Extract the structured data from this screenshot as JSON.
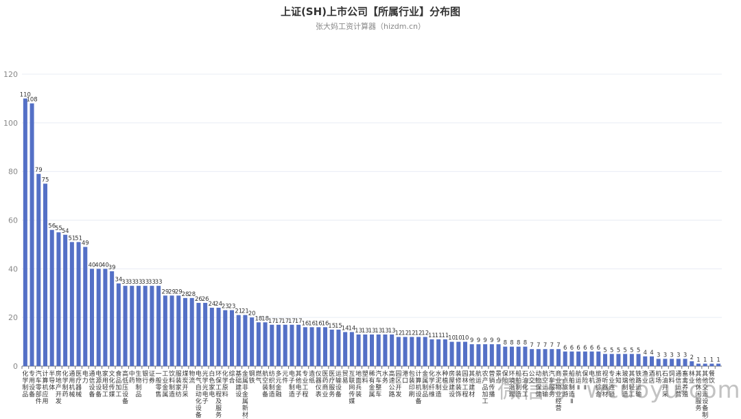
{
  "header": {
    "title": "上证(SH)上市公司【所属行业】分布图",
    "subtitle": "张大妈工资计算器（hizdm.cn）"
  },
  "watermark": "微信号: wcuoyu-com",
  "chart_data": {
    "type": "bar",
    "title": "上证(SH)上市公司【所属行业】分布图",
    "subtitle": "张大妈工资计算器（hizdm.cn）",
    "xlabel": "",
    "ylabel": "",
    "ylim": [
      0,
      120
    ],
    "yticks": [
      0,
      20,
      40,
      60,
      80,
      100,
      120
    ],
    "grid": true,
    "legend": null,
    "bar_color": "#5470c6",
    "categories": [
      "化学制品",
      "专用设备",
      "汽车零部件",
      "计算机应用",
      "半导体",
      "房地产开发",
      "化学制药",
      "通用机械",
      "医疗器械",
      "电力",
      "通信设备",
      "电源设备",
      "家用轻工",
      "文化传媒",
      "食品加工",
      "高低压设备",
      "中药",
      "生物制品",
      "银行",
      "证券",
      "一般零售",
      "工业金属",
      "饮料制造",
      "服装家纺",
      "煤炭开采",
      "物流",
      "电气自动化设备",
      "光学光电子",
      "白色家电",
      "环保工程及服务",
      "化学原料",
      "综合",
      "基础建设",
      "金属非金属新材料",
      "钢铁",
      "燃气",
      "航空装备",
      "纺织制造",
      "多元金融",
      "元件",
      "电子制造",
      "其他电子",
      "专业工程",
      "造纸",
      "仪器仪表",
      "医药商业",
      "医疗服务",
      "运输设备",
      "贸易",
      "互联网传媒",
      "地面兵装",
      "塑料",
      "稀有金属",
      "汽车整车",
      "水务",
      "高速公路",
      "园区开发",
      "港口",
      "包装印刷",
      "计算机设备",
      "金属制品",
      "化学纤维",
      "水泥制造",
      "种植业",
      "房屋建设",
      "装修装饰",
      "园林工程",
      "其他建材",
      "航运",
      "农产品加工",
      "营销传播",
      "景点",
      "保险",
      "环境治理",
      "船舶制造",
      "石油化工",
      "公交",
      "动物保健",
      "航空运输",
      "汽车服务",
      "商业物业经营",
      "景点旅游",
      "船舶制造Ⅱ",
      "航运Ⅱ",
      "保险Ⅱ",
      "电机",
      "旅游综合",
      "视听器材",
      "专业连锁",
      "未知",
      "玻璃制造",
      "其他轻工",
      "铁路运输",
      "渔业",
      "酒店",
      "机场",
      "石油开采",
      "饲料",
      "通信运营",
      "畜禽养殖",
      "林业",
      "其他休闲服务",
      "其他交运设备制造",
      "餐饮"
    ],
    "values": [
      110,
      108,
      79,
      75,
      56,
      55,
      54,
      51,
      51,
      49,
      40,
      40,
      40,
      39,
      34,
      33,
      33,
      33,
      33,
      33,
      33,
      29,
      29,
      29,
      28,
      28,
      26,
      26,
      24,
      24,
      23,
      23,
      21,
      21,
      20,
      18,
      18,
      17,
      17,
      17,
      17,
      17,
      16,
      16,
      16,
      16,
      15,
      15,
      14,
      14,
      13,
      13,
      13,
      13,
      13,
      13,
      12,
      12,
      12,
      12,
      12,
      11,
      11,
      11,
      10,
      10,
      10,
      9,
      9,
      9,
      9,
      9,
      8,
      8,
      8,
      8,
      7,
      7,
      7,
      7,
      7,
      6,
      6,
      6,
      6,
      6,
      6,
      5,
      5,
      5,
      5,
      5,
      5,
      4,
      4,
      3,
      3,
      3,
      3,
      3,
      2,
      1,
      1,
      1,
      1
    ]
  }
}
